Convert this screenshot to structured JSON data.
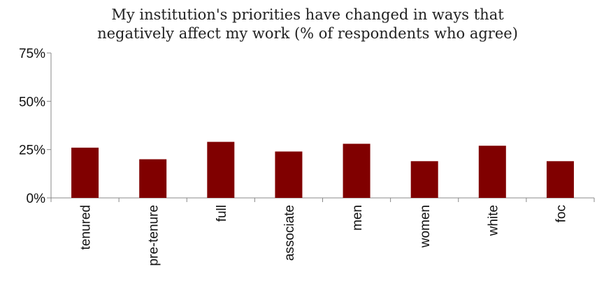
{
  "chart_data": {
    "type": "bar",
    "title_lines": [
      "My institution's priorities have changed in ways that",
      "negatively affect my work (% of respondents who agree)"
    ],
    "categories": [
      "tenured",
      "pre-tenure",
      "full",
      "associate",
      "men",
      "women",
      "white",
      "foc"
    ],
    "values": [
      26,
      20,
      29,
      24,
      28,
      19,
      27,
      19
    ],
    "y_ticks": [
      "0%",
      "25%",
      "50%",
      "75%"
    ],
    "y_tick_values": [
      0,
      25,
      50,
      75
    ],
    "ylim": [
      0,
      75
    ],
    "grid": false,
    "legend": "none",
    "bar_color": "#800000",
    "axis_color": "#888888"
  }
}
